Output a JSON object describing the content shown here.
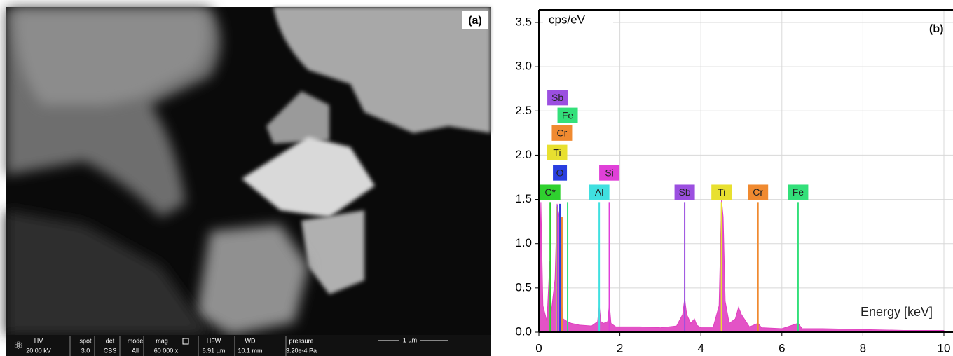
{
  "sem_panel": {
    "panel_label": "(a)",
    "scale_bar": "1 µm",
    "info": [
      {
        "label": "HV",
        "value": "20.00 kV"
      },
      {
        "label": "spot",
        "value": "3.0"
      },
      {
        "label": "det",
        "value": "CBS"
      },
      {
        "label": "mode",
        "value": "All"
      },
      {
        "label": "mag",
        "value": "60 000 x"
      },
      {
        "label": "HFW",
        "value": "6.91 µm"
      },
      {
        "label": "WD",
        "value": "10.1 mm"
      },
      {
        "label": "pressure",
        "value": "3.20e-4 Pa"
      }
    ]
  },
  "chart_data": {
    "type": "area",
    "panel_label": "(b)",
    "y_label": "cps/eV",
    "x_label": "Energy [keV]",
    "xlim": [
      0,
      10
    ],
    "xticks": [
      0,
      2,
      4,
      6,
      8,
      10
    ],
    "ylim": [
      0,
      3.5
    ],
    "yticks": [
      {
        "value": 0,
        "label": "0.0"
      },
      0.5,
      {
        "value": 1,
        "label": "1.0"
      },
      1.5,
      {
        "value": 2,
        "label": "2.0"
      },
      2.5,
      {
        "value": 3,
        "label": "3.0"
      },
      3.5
    ],
    "grid": true,
    "area_color": "#e040c0",
    "x": [
      0,
      0.05,
      0.1,
      0.2,
      0.27,
      0.3,
      0.4,
      0.45,
      0.5,
      0.52,
      0.55,
      0.6,
      0.7,
      0.8,
      1.0,
      1.3,
      1.45,
      1.49,
      1.53,
      1.6,
      1.7,
      1.74,
      1.78,
      1.9,
      2.5,
      3.0,
      3.4,
      3.55,
      3.6,
      3.65,
      3.75,
      3.84,
      3.9,
      4.0,
      4.3,
      4.45,
      4.51,
      4.55,
      4.6,
      4.7,
      4.85,
      4.93,
      5.0,
      5.2,
      5.41,
      5.5,
      6.0,
      6.4,
      6.5,
      7.0,
      8.0,
      9.0,
      10.0
    ],
    "values": [
      0.1,
      1.47,
      0.3,
      0.12,
      0.8,
      0.2,
      0.6,
      1.45,
      1.3,
      1.45,
      0.4,
      0.15,
      0.12,
      0.1,
      0.08,
      0.07,
      0.12,
      0.3,
      0.12,
      0.1,
      0.12,
      0.32,
      0.1,
      0.06,
      0.06,
      0.05,
      0.07,
      0.2,
      0.38,
      0.2,
      0.1,
      0.15,
      0.08,
      0.05,
      0.05,
      0.3,
      1.5,
      1.3,
      0.35,
      0.1,
      0.15,
      0.28,
      0.2,
      0.06,
      0.1,
      0.05,
      0.04,
      0.1,
      0.04,
      0.04,
      0.03,
      0.02,
      0.02
    ],
    "element_lines": [
      {
        "label": "C*",
        "color": "#2fd12f",
        "energy": 0.28,
        "height": 1.47,
        "label_y": 1.58
      },
      {
        "label": "O",
        "color": "#2a3fe0",
        "energy": 0.52,
        "height": 1.45,
        "label_y": 1.8
      },
      {
        "label": "Ti",
        "color": "#e8e030",
        "energy": 0.45,
        "height": 1.42,
        "label_y": 2.03
      },
      {
        "label": "Cr",
        "color": "#f08a30",
        "energy": 0.57,
        "height": 1.3,
        "label_y": 2.25
      },
      {
        "label": "Fe",
        "color": "#33e07a",
        "energy": 0.71,
        "height": 1.47,
        "label_y": 2.45
      },
      {
        "label": "Sb",
        "color": "#9b4fe0",
        "energy": 0.46,
        "height": 1.44,
        "label_y": 2.65
      },
      {
        "label": "Al",
        "color": "#40e0e0",
        "energy": 1.49,
        "height": 1.47,
        "label_y": 1.58
      },
      {
        "label": "Si",
        "color": "#e040d8",
        "energy": 1.74,
        "height": 1.47,
        "label_y": 1.8
      },
      {
        "label": "Sb",
        "color": "#9b4fe0",
        "energy": 3.6,
        "height": 1.47,
        "label_y": 1.58
      },
      {
        "label": "Ti",
        "color": "#e8e030",
        "energy": 4.51,
        "height": 1.47,
        "label_y": 1.58
      },
      {
        "label": "Cr",
        "color": "#f08a30",
        "energy": 5.41,
        "height": 1.47,
        "label_y": 1.58
      },
      {
        "label": "Fe",
        "color": "#33e07a",
        "energy": 6.4,
        "height": 1.47,
        "label_y": 1.58
      }
    ]
  }
}
